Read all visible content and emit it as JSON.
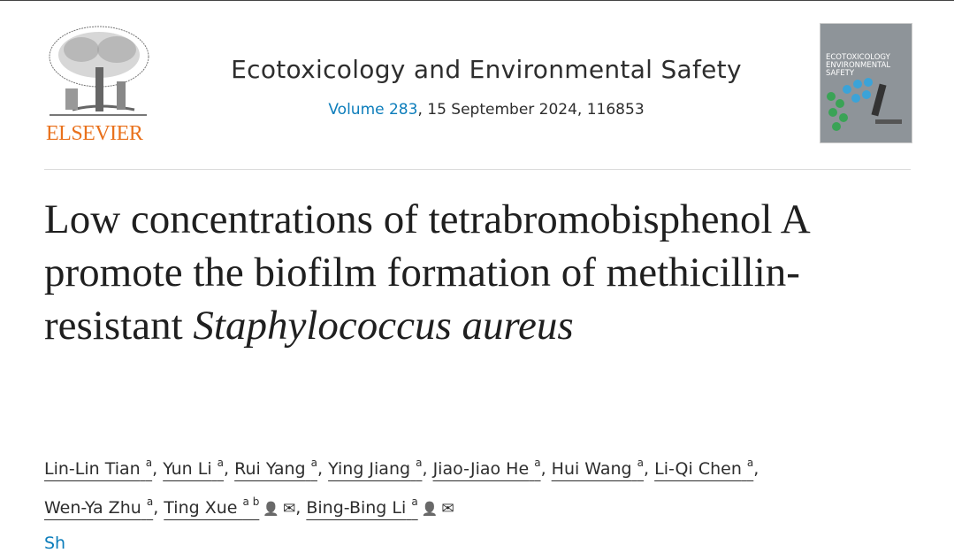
{
  "publisher": {
    "logo_text": "ELSEVIER",
    "logo_color": "#e9711c"
  },
  "journal": {
    "name": "Ecotoxicology and Environmental Safety",
    "volume_link": "Volume 283",
    "issue_rest": ", 15 September 2024, 116853",
    "cover_title": "ECOTOXICOLOGY ENVIRONMENTAL SAFETY"
  },
  "article": {
    "title_plain": "Low concentrations of tetrabromobisphenol A promote the biofilm formation of methicillin-resistant",
    "title_italic": "Staphylococcus aureus"
  },
  "authors": [
    {
      "name": "Lin-Lin Tian",
      "aff": "a"
    },
    {
      "name": "Yun Li",
      "aff": "a"
    },
    {
      "name": "Rui Yang",
      "aff": "a"
    },
    {
      "name": "Ying Jiang",
      "aff": "a"
    },
    {
      "name": "Jiao-Jiao He",
      "aff": "a"
    },
    {
      "name": "Hui Wang",
      "aff": "a"
    },
    {
      "name": "Li-Qi Chen",
      "aff": "a"
    },
    {
      "name": "Wen-Ya Zhu",
      "aff": "a"
    },
    {
      "name": "Ting Xue",
      "aff": "a b",
      "icons": [
        "person-icon",
        "envelope-icon"
      ]
    },
    {
      "name": "Bing-Bing Li",
      "aff": "a",
      "icons": [
        "person-icon",
        "envelope-icon"
      ]
    }
  ],
  "show_more": "Sh",
  "link_color": "#0c7dbb"
}
